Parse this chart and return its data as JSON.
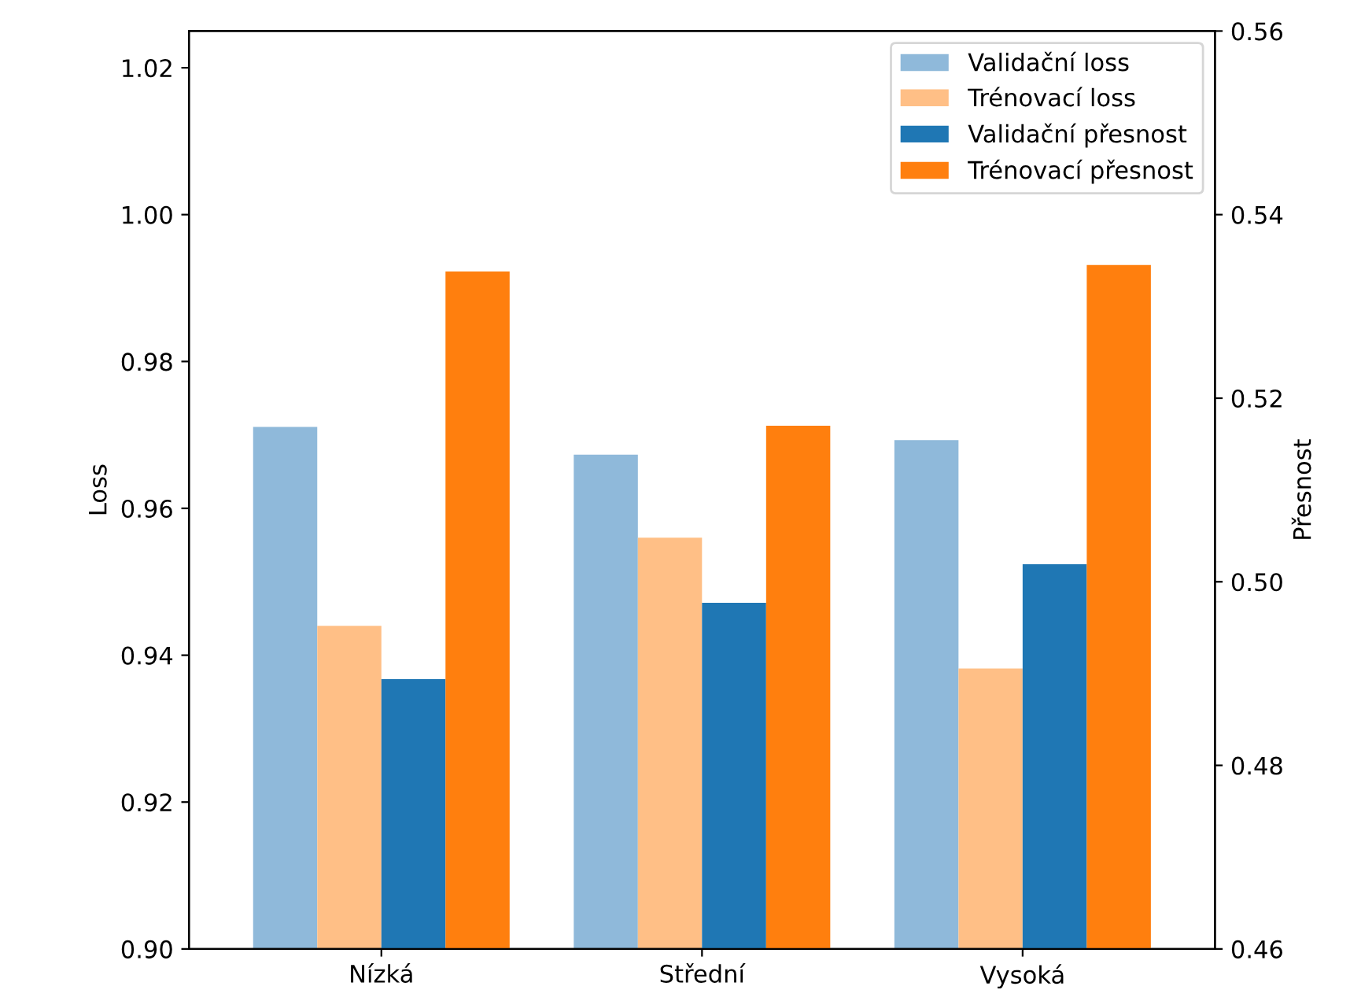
{
  "chart_data": {
    "type": "bar",
    "categories": [
      "Nízká",
      "Střední",
      "Vysoká"
    ],
    "ylabel": "Loss",
    "y2label": "Přesnost",
    "ylim": [
      0.9,
      1.025
    ],
    "yticks": [
      {
        "value": 0.9,
        "label": "0.90"
      },
      0.92,
      0.94,
      0.96,
      0.98,
      {
        "value": 1,
        "label": "1.00"
      },
      1.02
    ],
    "y2lim": [
      0.46,
      0.56
    ],
    "y2ticks": [
      0.46,
      0.48,
      {
        "value": 0.5,
        "label": "0.50"
      },
      0.52,
      0.54,
      0.56
    ],
    "legend": "top right",
    "series": [
      {
        "name": "Validační loss",
        "color": "#8fb9da",
        "values": [
          0.9711,
          0.9673,
          0.9693
        ]
      },
      {
        "name": "Trénovací loss",
        "color": "#ffbf86",
        "values": [
          0.944,
          0.956,
          0.9382
        ]
      },
      {
        "name": "Validační přesnost",
        "color": "#1f77b4",
        "axis": "y2",
        "values": [
          0.4894,
          0.4977,
          0.5019
        ]
      },
      {
        "name": "Trénovací přesnost",
        "color": "#ff7f0e",
        "axis": "y2",
        "values": [
          0.5338,
          0.517,
          0.5345
        ]
      }
    ]
  }
}
